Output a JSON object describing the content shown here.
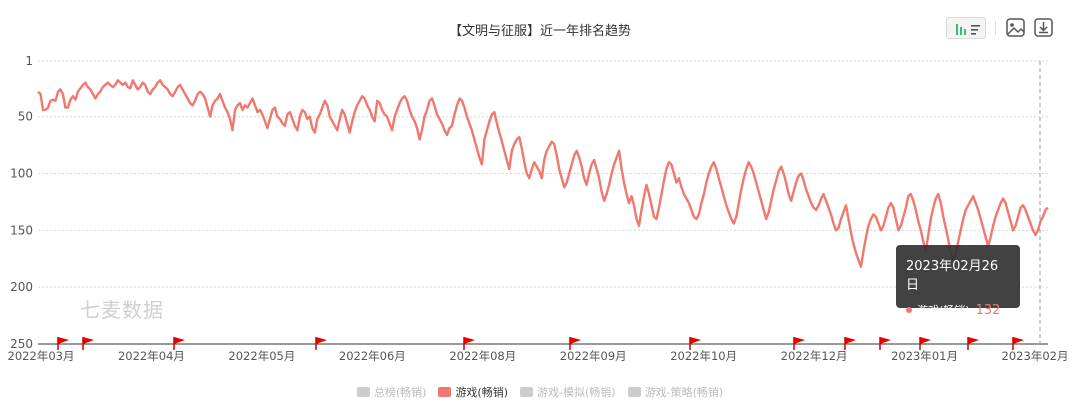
{
  "chart_data": {
    "type": "line",
    "title": "【文明与征服】近一年排名趋势",
    "y_axis": {
      "ticks": [
        1,
        50,
        100,
        150,
        200,
        250
      ],
      "range": [
        1,
        250
      ],
      "inverted": true
    },
    "x_axis": {
      "tick_labels": [
        "2022年03月",
        "2022年04月",
        "2022年05月",
        "2022年06月",
        "2022年08月",
        "2022年09月",
        "2022年10月",
        "2022年12月",
        "2023年01月",
        "2023年02月"
      ]
    },
    "grid": true,
    "legend": {
      "placement": "bottom",
      "items": [
        {
          "name": "总榜(畅销)",
          "active": false
        },
        {
          "name": "游戏(畅销)",
          "active": true
        },
        {
          "name": "游戏-模拟(畅销)",
          "active": false
        },
        {
          "name": "游戏-策略(畅销)",
          "active": false
        }
      ]
    },
    "series": [
      {
        "name": "游戏(畅销)",
        "color": "#f0786e",
        "values": [
          28,
          30,
          44,
          44,
          42,
          36,
          35,
          36,
          28,
          26,
          30,
          42,
          42,
          35,
          32,
          35,
          28,
          25,
          22,
          20,
          24,
          26,
          30,
          34,
          30,
          28,
          24,
          22,
          20,
          22,
          24,
          22,
          18,
          20,
          22,
          20,
          24,
          25,
          18,
          22,
          26,
          24,
          20,
          22,
          28,
          30,
          26,
          24,
          20,
          18,
          22,
          24,
          26,
          30,
          32,
          28,
          24,
          22,
          26,
          30,
          34,
          38,
          40,
          36,
          30,
          28,
          30,
          34,
          42,
          50,
          40,
          36,
          34,
          30,
          36,
          42,
          46,
          52,
          62,
          44,
          40,
          38,
          44,
          40,
          42,
          38,
          34,
          40,
          46,
          44,
          48,
          54,
          60,
          52,
          44,
          42,
          50,
          52,
          56,
          58,
          48,
          46,
          52,
          58,
          62,
          50,
          44,
          46,
          52,
          50,
          60,
          64,
          52,
          48,
          42,
          36,
          40,
          50,
          54,
          58,
          62,
          52,
          44,
          48,
          56,
          64,
          54,
          46,
          40,
          36,
          32,
          34,
          40,
          44,
          50,
          54,
          36,
          38,
          44,
          48,
          50,
          56,
          62,
          50,
          44,
          38,
          34,
          32,
          36,
          44,
          50,
          54,
          60,
          70,
          62,
          50,
          44,
          36,
          34,
          40,
          48,
          52,
          56,
          62,
          66,
          60,
          58,
          48,
          40,
          34,
          36,
          42,
          50,
          56,
          62,
          70,
          78,
          86,
          92,
          70,
          62,
          54,
          48,
          46,
          56,
          64,
          72,
          80,
          88,
          96,
          80,
          74,
          70,
          68,
          78,
          90,
          100,
          104,
          96,
          90,
          94,
          98,
          104,
          88,
          80,
          76,
          72,
          74,
          84,
          96,
          104,
          112,
          108,
          100,
          92,
          84,
          80,
          86,
          94,
          104,
          110,
          100,
          92,
          88,
          96,
          104,
          116,
          124,
          118,
          110,
          100,
          92,
          86,
          80,
          96,
          108,
          118,
          126,
          120,
          128,
          140,
          146,
          132,
          120,
          110,
          118,
          128,
          138,
          140,
          130,
          118,
          106,
          96,
          90,
          92,
          100,
          108,
          104,
          112,
          118,
          122,
          126,
          132,
          138,
          140,
          136,
          126,
          118,
          108,
          100,
          94,
          90,
          96,
          104,
          112,
          120,
          128,
          134,
          140,
          144,
          138,
          126,
          114,
          104,
          96,
          90,
          94,
          100,
          108,
          116,
          124,
          132,
          140,
          134,
          124,
          114,
          106,
          98,
          94,
          100,
          108,
          118,
          124,
          116,
          108,
          102,
          100,
          106,
          114,
          120,
          126,
          130,
          132,
          128,
          122,
          118,
          124,
          130,
          136,
          144,
          150,
          148,
          140,
          134,
          128,
          140,
          152,
          162,
          170,
          176,
          182,
          168,
          156,
          146,
          140,
          136,
          138,
          144,
          150,
          146,
          138,
          130,
          126,
          130,
          140,
          150,
          146,
          138,
          130,
          120,
          118,
          124,
          132,
          142,
          150,
          160,
          168,
          154,
          140,
          130,
          122,
          118,
          126,
          138,
          148,
          158,
          170,
          178,
          170,
          160,
          150,
          140,
          132,
          128,
          124,
          120,
          126,
          132,
          140,
          148,
          156,
          164,
          156,
          146,
          138,
          132,
          126,
          122,
          126,
          134,
          142,
          150,
          146,
          138,
          130,
          128,
          132,
          138,
          144,
          150,
          154,
          150,
          142,
          138,
          132,
          130
        ]
      }
    ],
    "flag_markers": 13,
    "annotation": {
      "date": "2023年02月26日",
      "series": "游戏(畅销)",
      "value": 132
    },
    "watermark": "七麦数据"
  }
}
